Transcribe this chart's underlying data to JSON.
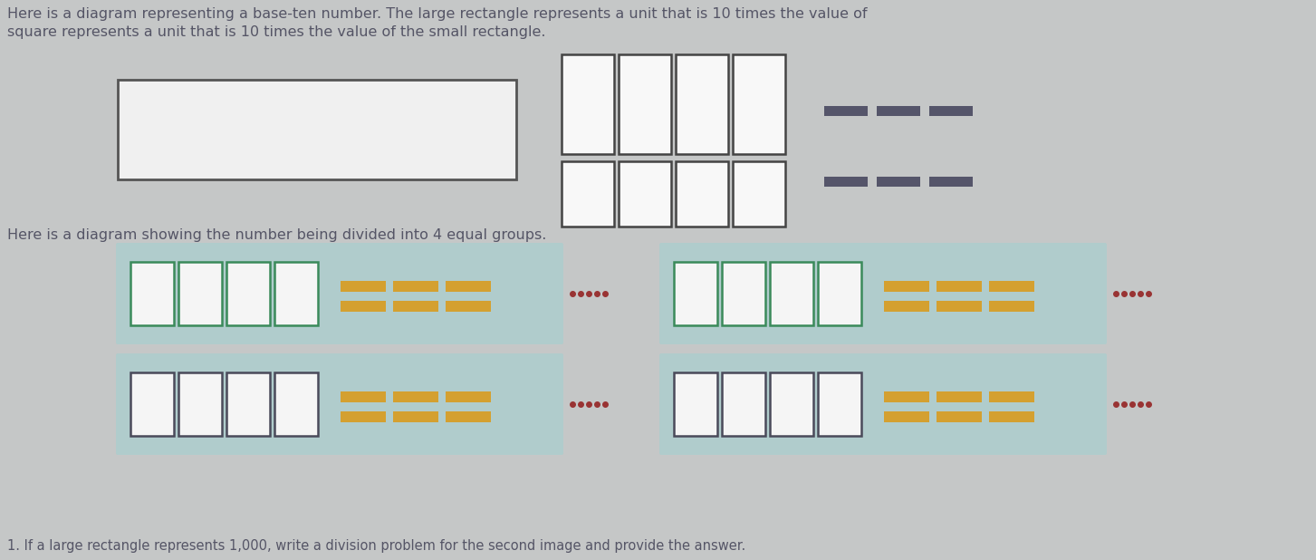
{
  "bg_color": "#c5c7c7",
  "text_color": "#555566",
  "header_text1": "Here is a diagram representing a base-ten number. The large rectangle represents a unit that is 10 times the value of",
  "header_text2": "square represents a unit that is 10 times the value of the small rectangle.",
  "divider_text": "Here is a diagram showing the number being divided into 4 equal groups.",
  "footer_text": "1. If a large rectangle represents 1,000, write a division problem for the second image and provide the answer.",
  "group_bg_color": "#b0cccc",
  "sq_fill": "#f5f5f5",
  "sq_border_top": "#3a8a5a",
  "sq_border_btm": "#4a4a5a",
  "wide_rect_fill": "#f0f0f0",
  "wide_rect_border": "#555555",
  "tall_sq_fill": "#f8f8f8",
  "tall_sq_border": "#444444",
  "bar_yellow": "#d4a030",
  "bar_dark": "#55556a",
  "dot_color": "#993333",
  "font_size": 11.5
}
